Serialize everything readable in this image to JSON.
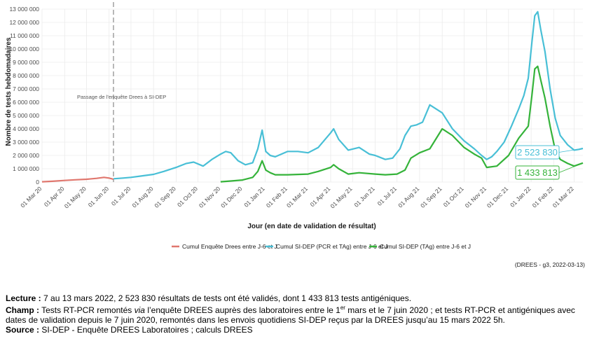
{
  "chart_data": {
    "type": "line",
    "title": "",
    "xlabel": "Jour (en date de validation de résultat)",
    "ylabel": "Nombre de tests hebdomadaires",
    "ylim": [
      0,
      13000000
    ],
    "xlim": [
      "2020-03-01",
      "2022-03-13"
    ],
    "grid": true,
    "legend_position": "bottom",
    "y_ticks": [
      "0",
      "1 000 000",
      "2 000 000",
      "3 000 000",
      "4 000 000",
      "5 000 000",
      "6 000 000",
      "7 000 000",
      "8 000 000",
      "9 000 000",
      "10 000 000",
      "11 000 000",
      "12 000 000",
      "13 000 000"
    ],
    "x_ticks": [
      {
        "date": "2020-03-01",
        "label": "01 Mar 20"
      },
      {
        "date": "2020-04-01",
        "label": "01 Apr 20"
      },
      {
        "date": "2020-05-01",
        "label": "01 May 20"
      },
      {
        "date": "2020-06-01",
        "label": "01 Jun 20"
      },
      {
        "date": "2020-07-01",
        "label": "01 Jul 20"
      },
      {
        "date": "2020-08-01",
        "label": "01 Aug 20"
      },
      {
        "date": "2020-09-01",
        "label": "01 Sep 20"
      },
      {
        "date": "2020-10-01",
        "label": "01 Oct 20"
      },
      {
        "date": "2020-11-01",
        "label": "01 Nov 20"
      },
      {
        "date": "2020-12-01",
        "label": "01 Dec 20"
      },
      {
        "date": "2021-01-01",
        "label": "01 Jan 21"
      },
      {
        "date": "2021-02-01",
        "label": "01 Feb 21"
      },
      {
        "date": "2021-03-01",
        "label": "01 Mar 21"
      },
      {
        "date": "2021-04-01",
        "label": "01 Apr 21"
      },
      {
        "date": "2021-05-01",
        "label": "01 May 21"
      },
      {
        "date": "2021-06-01",
        "label": "01 Jun 21"
      },
      {
        "date": "2021-07-01",
        "label": "01 Jul 21"
      },
      {
        "date": "2021-08-01",
        "label": "01 Aug 21"
      },
      {
        "date": "2021-09-01",
        "label": "01 Sep 21"
      },
      {
        "date": "2021-10-01",
        "label": "01 Oct 21"
      },
      {
        "date": "2021-11-01",
        "label": "01 Nov 21"
      },
      {
        "date": "2021-12-01",
        "label": "01 Dec 21"
      },
      {
        "date": "2022-01-01",
        "label": "01 Jan 22"
      },
      {
        "date": "2022-02-01",
        "label": "01 Feb 22"
      },
      {
        "date": "2022-03-01",
        "label": "01 Mar 22"
      }
    ],
    "annotation": {
      "date": "2020-06-07",
      "text": "Passage de l'enquête Drees à SI-DEP"
    },
    "series": [
      {
        "name": "Cumul Enquête Drees entre J-6 et J",
        "color": "#e0776e",
        "x": [
          "2020-03-01",
          "2020-03-15",
          "2020-04-01",
          "2020-04-15",
          "2020-05-01",
          "2020-05-15",
          "2020-05-25",
          "2020-06-01",
          "2020-06-07"
        ],
        "y": [
          20000,
          60000,
          120000,
          170000,
          210000,
          280000,
          350000,
          300000,
          210000
        ]
      },
      {
        "name": "Cumul SI-DEP (PCR et TAg) entre J-6 et J",
        "color": "#48bfd6",
        "x": [
          "2020-06-07",
          "2020-06-20",
          "2020-07-01",
          "2020-07-15",
          "2020-08-01",
          "2020-08-15",
          "2020-09-01",
          "2020-09-15",
          "2020-09-25",
          "2020-10-08",
          "2020-10-20",
          "2020-11-01",
          "2020-11-08",
          "2020-11-15",
          "2020-11-25",
          "2020-12-05",
          "2020-12-15",
          "2020-12-22",
          "2020-12-28",
          "2021-01-02",
          "2021-01-08",
          "2021-01-15",
          "2021-02-01",
          "2021-02-15",
          "2021-03-01",
          "2021-03-15",
          "2021-04-01",
          "2021-04-05",
          "2021-04-12",
          "2021-04-25",
          "2021-05-10",
          "2021-05-24",
          "2021-06-01",
          "2021-06-15",
          "2021-06-25",
          "2021-07-05",
          "2021-07-12",
          "2021-07-20",
          "2021-07-28",
          "2021-08-05",
          "2021-08-15",
          "2021-09-01",
          "2021-09-15",
          "2021-10-01",
          "2021-10-15",
          "2021-10-25",
          "2021-11-01",
          "2021-11-08",
          "2021-11-15",
          "2021-11-25",
          "2021-12-05",
          "2021-12-15",
          "2021-12-22",
          "2021-12-28",
          "2022-01-02",
          "2022-01-06",
          "2022-01-10",
          "2022-01-14",
          "2022-01-20",
          "2022-01-27",
          "2022-02-03",
          "2022-02-10",
          "2022-02-20",
          "2022-03-01",
          "2022-03-07",
          "2022-03-13"
        ],
        "y": [
          250000,
          300000,
          350000,
          450000,
          580000,
          800000,
          1100000,
          1400000,
          1500000,
          1200000,
          1700000,
          2100000,
          2300000,
          2200000,
          1600000,
          1300000,
          1450000,
          2500000,
          3900000,
          2300000,
          2000000,
          1900000,
          2300000,
          2300000,
          2200000,
          2600000,
          3700000,
          4000000,
          3200000,
          2400000,
          2600000,
          2100000,
          2000000,
          1700000,
          1800000,
          2500000,
          3500000,
          4200000,
          4300000,
          4500000,
          5800000,
          5200000,
          4000000,
          3100000,
          2500000,
          2000000,
          1700000,
          1900000,
          2300000,
          3000000,
          4200000,
          5500000,
          6500000,
          7800000,
          10500000,
          12500000,
          12800000,
          11500000,
          9800000,
          7000000,
          4800000,
          3500000,
          2800000,
          2400000,
          2450000,
          2523830
        ]
      },
      {
        "name": "Cumul SI-DEP (TAg) entre J-6 et J",
        "color": "#35b33a",
        "x": [
          "2020-11-01",
          "2020-11-15",
          "2020-12-01",
          "2020-12-15",
          "2020-12-22",
          "2020-12-28",
          "2021-01-02",
          "2021-01-08",
          "2021-01-15",
          "2021-02-01",
          "2021-03-01",
          "2021-03-15",
          "2021-04-01",
          "2021-04-05",
          "2021-04-12",
          "2021-04-25",
          "2021-05-10",
          "2021-06-01",
          "2021-06-15",
          "2021-07-01",
          "2021-07-12",
          "2021-07-20",
          "2021-08-01",
          "2021-08-15",
          "2021-09-01",
          "2021-09-15",
          "2021-10-01",
          "2021-10-15",
          "2021-10-25",
          "2021-11-01",
          "2021-11-15",
          "2021-12-01",
          "2021-12-15",
          "2021-12-28",
          "2022-01-02",
          "2022-01-06",
          "2022-01-10",
          "2022-01-14",
          "2022-01-20",
          "2022-01-27",
          "2022-02-03",
          "2022-02-10",
          "2022-02-20",
          "2022-03-01",
          "2022-03-13"
        ],
        "y": [
          20000,
          80000,
          150000,
          350000,
          800000,
          1600000,
          900000,
          700000,
          550000,
          550000,
          600000,
          800000,
          1100000,
          1300000,
          1000000,
          600000,
          700000,
          600000,
          550000,
          600000,
          900000,
          1800000,
          2200000,
          2500000,
          4000000,
          3500000,
          2600000,
          2100000,
          1800000,
          1100000,
          1200000,
          2000000,
          3300000,
          4200000,
          6500000,
          8500000,
          8700000,
          7700000,
          6300000,
          4200000,
          2400000,
          1700000,
          1400000,
          1200000,
          1433813
        ]
      }
    ],
    "end_labels": [
      {
        "series": 1,
        "text": "2 523 830"
      },
      {
        "series": 2,
        "text": "1 433 813"
      }
    ]
  },
  "credit": "(DREES - g3, 2022-03-13)",
  "notes": {
    "lecture_label": "Lecture :",
    "lecture_text": "7 au 13 mars 2022, 2 523 830 résultats de tests ont été validés, dont 1 433 813 tests antigéniques.",
    "champ_label": "Champ :",
    "champ_text_1": "Tests RT-PCR remontés",
    "champ_via": "via",
    "champ_text_2": "l’enquête DREES auprès des laboratoires entre le 1",
    "champ_sup": "er",
    "champ_text_3": "mars et le 7 juin 2020 ; et tests RT-PCR et antigéniques avec dates de validation depuis le 7 juin 2020, remontés dans les envois quotidiens SI-DEP reçus par la DREES jusqu’au 15 mars 2022 5h.",
    "source_label": "Source :",
    "source_text": "SI-DEP - Enquête DREES Laboratoires ; calculs DREES"
  }
}
